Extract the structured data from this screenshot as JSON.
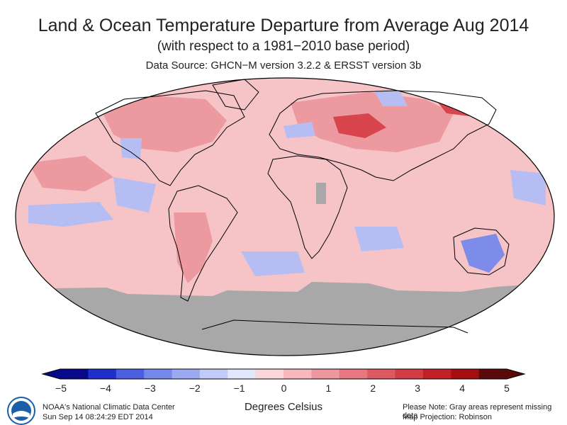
{
  "header": {
    "title": "Land & Ocean Temperature Departure from Average Aug 2014",
    "subtitle": "(with respect to a 1981−2010 base period)",
    "source": "Data Source: GHCN−M version 3.2.2 & ERSST version 3b"
  },
  "legend": {
    "units": "Degrees Celsius",
    "ticks": [
      "−5",
      "−4",
      "−3",
      "−2",
      "−1",
      "0",
      "1",
      "2",
      "3",
      "4",
      "5"
    ],
    "colors": [
      "#08088a",
      "#1f2fcc",
      "#4a5fe0",
      "#7388ea",
      "#9aa9f2",
      "#c3ccf8",
      "#e2e6fc",
      "#fbd6da",
      "#f6b7bd",
      "#ef979f",
      "#e77780",
      "#de5a63",
      "#d23c45",
      "#c22028",
      "#a50f12",
      "#5a0a0a"
    ]
  },
  "footer": {
    "agency": "NOAA's National Climatic Data Center",
    "timestamp": "Sun Sep 14 08:24:29 EDT 2014",
    "note": "Please Note: Gray areas represent missing data",
    "projection": "Map Projection: Robinson"
  },
  "logo": {
    "text": "NOAA",
    "color": "#1a5fa8"
  },
  "map_colors": {
    "missing": "#a8a8a8",
    "neutral": "#f6c3c7",
    "warm": "#ec9aa0",
    "hot": "#d8454d",
    "cool": "#b6bdf3",
    "cold": "#7d8ce8"
  }
}
